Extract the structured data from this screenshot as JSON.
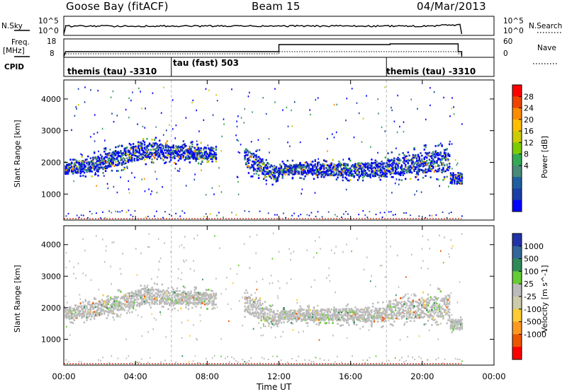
{
  "header": {
    "station": "Goose Bay (fitACF)",
    "beam": "Beam 15",
    "date": "04/Mar/2013"
  },
  "top_panels": {
    "nsky_label": "N.Sky",
    "nsky_ticks": [
      "10^5",
      "10^0"
    ],
    "nsearch_label": "N.Search",
    "nsearch_ticks": [
      "10^5",
      "10^0"
    ],
    "freq_label": "Freq.",
    "freq_unit": "[MHz]",
    "freq_ticks": [
      "18",
      "8"
    ],
    "nave_label": "Nave",
    "nave_ticks": [
      "60",
      "0"
    ],
    "cpid_label": "CPID",
    "cpid_segments": [
      {
        "label": "themis (tau) -3310",
        "start_hr": 0.0
      },
      {
        "label": "tau (fast) 503",
        "start_hr": 6.0
      },
      {
        "label": "themis (tau) -3310",
        "start_hr": 18.0
      }
    ]
  },
  "chart_data": [
    {
      "type": "heatmap",
      "title": "",
      "xlabel": "",
      "ylabel": "Slant Range [km]",
      "xlim": [
        0,
        24
      ],
      "ylim": [
        180,
        4600
      ],
      "x_tick_values": [
        0,
        4,
        8,
        12,
        16,
        20,
        24
      ],
      "y_tick_values": [
        1000,
        2000,
        3000,
        4000
      ],
      "y_ticks": [
        "1000",
        "2000",
        "3000",
        "4000"
      ],
      "colorbar": {
        "label": "Power [dB]",
        "ticks": [
          "28",
          "24",
          "20",
          "16",
          "12",
          "8",
          "4"
        ],
        "colors": [
          "#ff0000",
          "#ee4400",
          "#ff8c00",
          "#ffbf00",
          "#cccc00",
          "#7ccc00",
          "#33aa55",
          "#4a8a78",
          "#1f5fa0",
          "#1a3fa8",
          "#0000ff"
        ]
      },
      "data": {
        "scatter_band": [
          {
            "x": [
              0,
              1.5
            ],
            "center": [
              1800,
              1950
            ],
            "width": [
              300,
              450
            ]
          },
          {
            "x": [
              1.5,
              4.5
            ],
            "center": [
              1950,
              2400
            ],
            "width": [
              450,
              500
            ]
          },
          {
            "x": [
              4.5,
              8.5
            ],
            "center": [
              2400,
              2300
            ],
            "width": [
              500,
              350
            ]
          },
          {
            "x": [
              10,
              12
            ],
            "center": [
              2200,
              1600
            ],
            "width": [
              600,
              400
            ]
          },
          {
            "x": [
              12,
              18
            ],
            "center": [
              1800,
              1800
            ],
            "width": [
              300,
              450
            ]
          },
          {
            "x": [
              18,
              21.5
            ],
            "center": [
              1900,
              2100
            ],
            "width": [
              500,
              700
            ]
          },
          {
            "x": [
              21.5,
              22.2
            ],
            "center": [
              1500,
              1500
            ],
            "width": [
              300,
              300
            ]
          }
        ],
        "dominant_power_db": [
          4,
          16
        ]
      }
    },
    {
      "type": "heatmap",
      "title": "",
      "xlabel": "Time UT",
      "ylabel": "Slant Range [km]",
      "xlim": [
        0,
        24
      ],
      "ylim": [
        180,
        4600
      ],
      "x_ticks": [
        "00:00",
        "04:00",
        "08:00",
        "12:00",
        "16:00",
        "20:00",
        "00:00"
      ],
      "x_tick_values": [
        0,
        4,
        8,
        12,
        16,
        20,
        24
      ],
      "y_tick_values": [
        1000,
        2000,
        3000,
        4000
      ],
      "y_ticks": [
        "1000",
        "2000",
        "3000",
        "4000"
      ],
      "colorbar": {
        "label": "Velocity [m s^-1]",
        "ticks": [
          "1000",
          "500",
          "100",
          "25",
          "-25",
          "-100",
          "-500",
          "-1000"
        ],
        "colors": [
          "#2233aa",
          "#336699",
          "#2e8b57",
          "#66cc33",
          "#bbbbbb",
          "#ccccaa",
          "#ffcc33",
          "#ff9922",
          "#ee5500",
          "#ff0000"
        ]
      },
      "data": {
        "dominant_velocity_ms": [
          -25,
          25
        ]
      }
    }
  ]
}
